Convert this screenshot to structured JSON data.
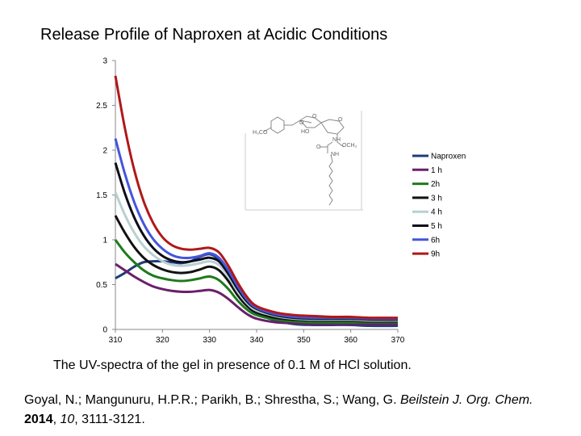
{
  "chart_data": {
    "type": "line",
    "title": "Release Profile of Naproxen at Acidic Conditions",
    "xlabel": "",
    "ylabel": "",
    "xlim": [
      310,
      370
    ],
    "ylim": [
      0,
      3
    ],
    "x_ticks": [
      "310",
      "320",
      "330",
      "340",
      "350",
      "360",
      "370"
    ],
    "y_ticks": [
      "0",
      "0.5",
      "1",
      "1.5",
      "2",
      "2.5",
      "3"
    ],
    "grid": false,
    "legend_position": "right",
    "series": [
      {
        "name": "Naproxen",
        "color": "#1f3d7a",
        "x": [
          310,
          312,
          314,
          316,
          318,
          320,
          322,
          324,
          326,
          328,
          330,
          332,
          334,
          336,
          338,
          340,
          344,
          348,
          352,
          356,
          360,
          364,
          370
        ],
        "y": [
          0.57,
          0.63,
          0.7,
          0.75,
          0.76,
          0.76,
          0.75,
          0.74,
          0.76,
          0.81,
          0.84,
          0.78,
          0.62,
          0.42,
          0.27,
          0.18,
          0.1,
          0.06,
          0.05,
          0.05,
          0.05,
          0.04,
          0.04
        ]
      },
      {
        "name": "1 h",
        "color": "#6b1f6b",
        "x": [
          310,
          312,
          314,
          316,
          318,
          320,
          322,
          324,
          326,
          328,
          330,
          332,
          334,
          336,
          338,
          340,
          344,
          348,
          352,
          356,
          360,
          364,
          370
        ],
        "y": [
          0.73,
          0.66,
          0.59,
          0.53,
          0.48,
          0.45,
          0.43,
          0.42,
          0.42,
          0.43,
          0.44,
          0.41,
          0.34,
          0.25,
          0.17,
          0.12,
          0.08,
          0.07,
          0.06,
          0.06,
          0.06,
          0.06,
          0.06
        ]
      },
      {
        "name": "2h",
        "color": "#1e7a1e",
        "x": [
          310,
          312,
          314,
          316,
          318,
          320,
          322,
          324,
          326,
          328,
          330,
          332,
          334,
          336,
          338,
          340,
          344,
          348,
          352,
          356,
          360,
          364,
          370
        ],
        "y": [
          1.0,
          0.86,
          0.75,
          0.66,
          0.6,
          0.57,
          0.55,
          0.54,
          0.55,
          0.57,
          0.59,
          0.55,
          0.45,
          0.32,
          0.22,
          0.16,
          0.11,
          0.09,
          0.08,
          0.08,
          0.08,
          0.08,
          0.08
        ]
      },
      {
        "name": "3 h",
        "color": "#111111",
        "x": [
          310,
          312,
          314,
          316,
          318,
          320,
          322,
          324,
          326,
          328,
          330,
          332,
          334,
          336,
          338,
          340,
          344,
          348,
          352,
          356,
          360,
          364,
          370
        ],
        "y": [
          1.27,
          1.08,
          0.92,
          0.8,
          0.72,
          0.67,
          0.64,
          0.63,
          0.64,
          0.67,
          0.7,
          0.66,
          0.54,
          0.38,
          0.26,
          0.19,
          0.13,
          0.11,
          0.1,
          0.1,
          0.1,
          0.09,
          0.09
        ]
      },
      {
        "name": "4 h",
        "color": "#b8cfd4",
        "x": [
          310,
          312,
          314,
          316,
          318,
          320,
          322,
          324,
          326,
          328,
          330,
          332,
          334,
          336,
          338,
          340,
          344,
          348,
          352,
          356,
          360,
          364,
          370
        ],
        "y": [
          1.53,
          1.28,
          1.08,
          0.93,
          0.83,
          0.76,
          0.72,
          0.71,
          0.72,
          0.74,
          0.76,
          0.72,
          0.59,
          0.42,
          0.29,
          0.21,
          0.15,
          0.12,
          0.11,
          0.11,
          0.11,
          0.1,
          0.1
        ]
      },
      {
        "name": "5 h",
        "color": "#0d0d1a",
        "x": [
          310,
          312,
          314,
          316,
          318,
          320,
          322,
          324,
          326,
          328,
          330,
          332,
          334,
          336,
          338,
          340,
          344,
          348,
          352,
          356,
          360,
          364,
          370
        ],
        "y": [
          1.86,
          1.52,
          1.25,
          1.05,
          0.91,
          0.82,
          0.77,
          0.75,
          0.76,
          0.78,
          0.8,
          0.76,
          0.62,
          0.45,
          0.31,
          0.23,
          0.16,
          0.13,
          0.12,
          0.12,
          0.12,
          0.11,
          0.11
        ]
      },
      {
        "name": "6h",
        "color": "#4455dd",
        "x": [
          310,
          312,
          314,
          316,
          318,
          320,
          322,
          324,
          326,
          328,
          330,
          332,
          334,
          336,
          338,
          340,
          344,
          348,
          352,
          356,
          360,
          364,
          370
        ],
        "y": [
          2.13,
          1.74,
          1.42,
          1.18,
          1.01,
          0.9,
          0.83,
          0.8,
          0.8,
          0.82,
          0.85,
          0.8,
          0.66,
          0.48,
          0.33,
          0.24,
          0.17,
          0.14,
          0.13,
          0.13,
          0.13,
          0.12,
          0.12
        ]
      },
      {
        "name": "9h",
        "color": "#b01818",
        "x": [
          310,
          312,
          314,
          316,
          318,
          320,
          322,
          324,
          326,
          328,
          330,
          332,
          334,
          336,
          338,
          340,
          344,
          348,
          352,
          356,
          360,
          364,
          370
        ],
        "y": [
          2.83,
          2.25,
          1.78,
          1.43,
          1.19,
          1.03,
          0.94,
          0.9,
          0.89,
          0.9,
          0.91,
          0.86,
          0.71,
          0.52,
          0.36,
          0.26,
          0.19,
          0.16,
          0.15,
          0.14,
          0.14,
          0.13,
          0.13
        ]
      }
    ]
  },
  "molecule_labels": {
    "h3co": "H₃CO",
    "ho": "HO",
    "nh_top": "NH",
    "och3": "OCH₃",
    "nh_bottom": "NH",
    "o_ring1": "O",
    "o_ring2": "O",
    "o_ring3": "O",
    "o_carbonyl": "O"
  },
  "caption": "The UV-spectra of the gel in presence of 0.1 M of HCl solution.",
  "citation": {
    "authors": "Goyal, N.; Mangunuru, H.P.R.; Parikh, B.; Shrestha, S.; Wang, G. ",
    "journal": "Beilstein J. Org. Chem.",
    "year": "2014",
    "volume": "10",
    "pages": "3111-3121."
  }
}
